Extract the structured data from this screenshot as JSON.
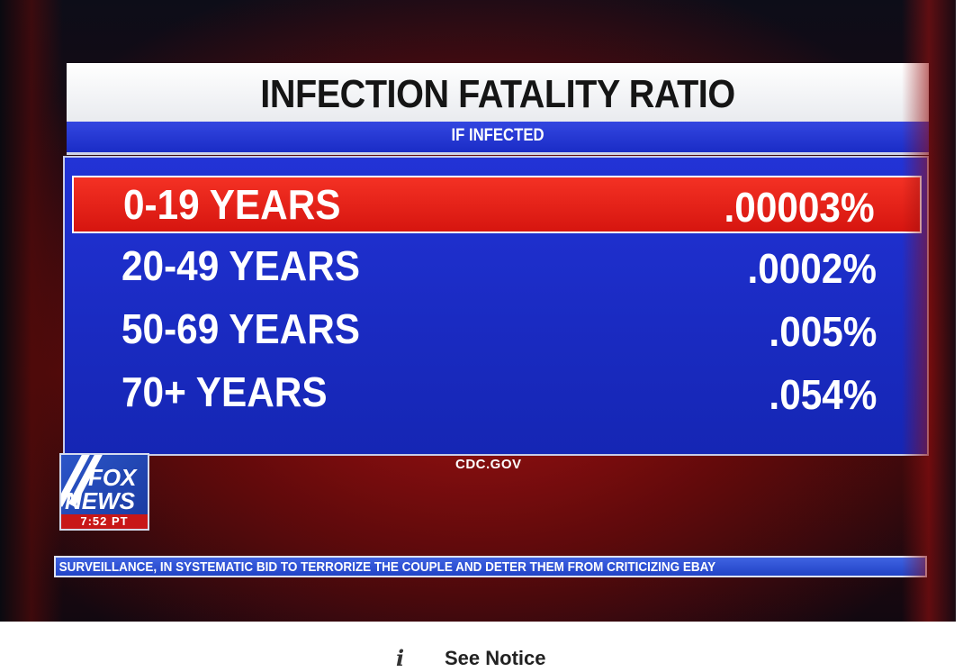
{
  "graphic": {
    "title": "INFECTION FATALITY RATIO",
    "subtitle": "IF INFECTED",
    "source": "CDC.GOV",
    "rows": [
      {
        "age": "0-19 YEARS",
        "value": ".00003%",
        "highlighted": true
      },
      {
        "age": "20-49 YEARS",
        "value": ".0002%",
        "highlighted": false
      },
      {
        "age": "50-69 YEARS",
        "value": ".005%",
        "highlighted": false
      },
      {
        "age": "70+ YEARS",
        "value": ".054%",
        "highlighted": false
      }
    ]
  },
  "logo": {
    "line1": "FOX",
    "line2": "NEWS",
    "clock": "7:52 PT"
  },
  "ticker": {
    "text": "SURVEILLANCE, IN SYSTEMATIC BID TO TERRORIZE THE COUPLE AND DETER THEM FROM CRITICIZING EBAY"
  },
  "notice": {
    "icon": "info-icon",
    "label": "See Notice"
  },
  "colors": {
    "panel_blue": "#1a2bc2",
    "highlight_red": "#e01d14",
    "title_bg": "#f2f3f5"
  }
}
